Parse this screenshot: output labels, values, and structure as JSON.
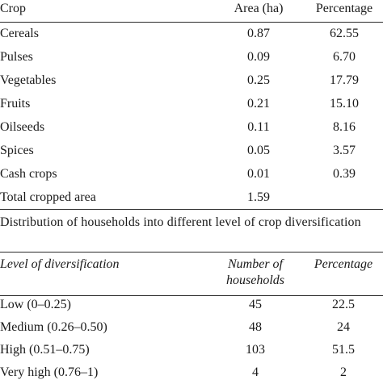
{
  "table1": {
    "headers": [
      "Crop",
      "Area (ha)",
      "Percentage"
    ],
    "rows": [
      [
        "Cereals",
        "0.87",
        "62.55"
      ],
      [
        "Pulses",
        "0.09",
        "6.70"
      ],
      [
        "Vegetables",
        "0.25",
        "17.79"
      ],
      [
        "Fruits",
        "0.21",
        "15.10"
      ],
      [
        "Oilseeds",
        "0.11",
        "8.16"
      ],
      [
        "Spices",
        "0.05",
        "3.57"
      ],
      [
        "Cash crops",
        "0.01",
        "0.39"
      ],
      [
        "Total cropped area",
        "1.59",
        ""
      ]
    ]
  },
  "table2": {
    "caption": "Distribution of households into different level of crop diversification",
    "headers": [
      "Level of diversification",
      "Number of households",
      "Percentage"
    ],
    "header_col2_lines": [
      "Number of",
      "households"
    ],
    "rows": [
      [
        "Low (0–0.25)",
        "45",
        "22.5"
      ],
      [
        "Medium (0.26–0.50)",
        "48",
        "24"
      ],
      [
        "High (0.51–0.75)",
        "103",
        "51.5"
      ],
      [
        "Very high (0.76–1)",
        "4",
        "2"
      ]
    ]
  }
}
